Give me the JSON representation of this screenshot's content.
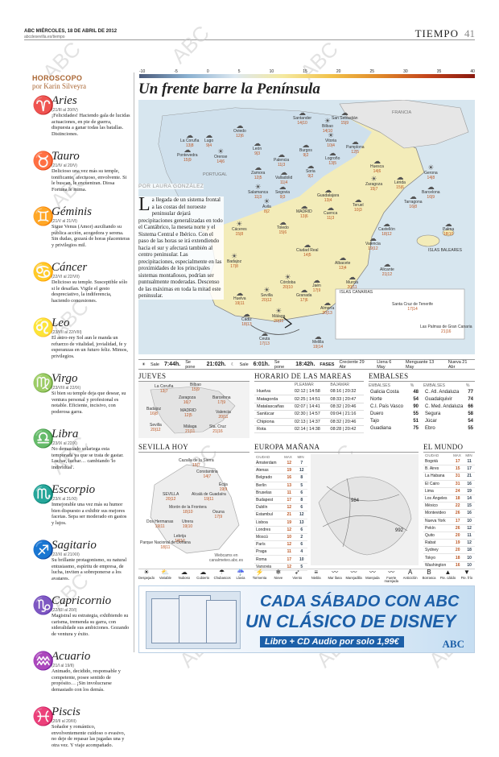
{
  "header": {
    "paper": "ABC",
    "date": "MIÉRCOLES, 18 DE ABRIL DE 2012",
    "url": "abcdesevilla.es/tiempo",
    "section": "TIEMPO",
    "page": "41"
  },
  "watermark": "ABC",
  "horoscope": {
    "title": "HOROSCOPO",
    "author": "por Karin Silveyra",
    "signs": [
      {
        "glyph": "♈",
        "name": "Aries",
        "dates": "(21/III al 20/IV)",
        "text": "¡Felicidades! Haciendo gala de lucidas actuaciones, en pie de guerra, dispuesta a ganar todas las batallas. Distinciones."
      },
      {
        "glyph": "♉",
        "name": "Tauro",
        "dates": "(21/IV al 20/V)",
        "text": "Delicioso una vez más su temple, tonificante, afectuoso, envolvente. Si le buscan, le encuentran. Diosa Fortuna le mima."
      },
      {
        "glyph": "♊",
        "name": "Géminis",
        "dates": "(21/V al 21/VI)",
        "text": "Sigue Venus (Amor) auxiliando su pública acción, acogedora y serena. Sin dudas, gozará de horas placenteras y privilegios mil."
      },
      {
        "glyph": "♋",
        "name": "Cáncer",
        "dates": "(22/VI al 22/VII)",
        "text": "Delicioso su temple. Susceptible sólo si le desafían. Vigile el gesto despreciativo, la indiferencia, haciendo concesiones."
      },
      {
        "glyph": "♌",
        "name": "Leo",
        "dates": "(23/VII al 22/VIII)",
        "text": "El astro-rey Sol aun le manda un refuerzo de vitalidad, jovialidad, fe y esperanzas en un futuro feliz. Mimos, privilegios."
      },
      {
        "glyph": "♍",
        "name": "Virgo",
        "dates": "(23/VIII al 22/IX)",
        "text": "Si bien su temple deja que desear, su ventura personal y profesional es notable. Eficiente, incisivo, con poderosa garra."
      },
      {
        "glyph": "♎",
        "name": "Libra",
        "dates": "(23/IX al 22/X)",
        "text": "No demasiado solariega esta temporada ya que se trata de gastar. Luchar, luchar… cambiando 'lo individual'."
      },
      {
        "glyph": "♏",
        "name": "Escorpio",
        "dates": "(23/X al 21/XI)",
        "text": "Inmejorable una vez más su humor bien dispuesto a exhibir sus mejores facetas. Sepa ser moderado en gastos y lujos."
      },
      {
        "glyph": "♐",
        "name": "Sagitario",
        "dates": "(22/XI al 21/XII)",
        "text": "Su brillante protagonismo, su natural entusiasmo, espíritu de empresa, de lucha, inviten a sobreponerse a los avatares."
      },
      {
        "glyph": "♑",
        "name": "Capricornio",
        "dates": "(22/XII al 20/I)",
        "text": "Magistral su estrategia, exhibiendo su carisma, tremenda su garra, con sideralidade sus ambiciones. Gozando de ventura y éxito."
      },
      {
        "glyph": "♒",
        "name": "Acuario",
        "dates": "(21/I al 19/II)",
        "text": "Animado, decidido, responsable y competente, posee sentido de propósito… ¡Sin involucrarse demasiado con los demás."
      },
      {
        "glyph": "♓",
        "name": "Piscis",
        "dates": "(20/II al 20/III)",
        "text": "Soñador y romántico, envolventemente cuidoso o evasivo, no deje de repasar las jugadas una y otra vez. Y viaje acompañado."
      }
    ]
  },
  "scale": {
    "ticks": [
      "-10",
      "-5",
      "0",
      "5",
      "10",
      "15",
      "20",
      "25",
      "30",
      "35",
      "40"
    ]
  },
  "headline": "Un frente barre la Península",
  "byline": "POR LAURA GONZÁLEZ",
  "article": {
    "initial": "L",
    "text": "a llegada de un sistema frontal a las costas del noroeste peninsular dejará precipitaciones generalizadas en todo el Cantábrico, la meseta norte y el Sistema Central e Ibérico. Con el paso de las horas se irá extendiendo hacia el sur y afectará también al centro peninsular. Las precipitaciones, especialmente en las proximidades de los principales sistemas montañosos, podrían ser puntualmente moderadas. Descenso de las máximas en toda la mitad este peninsular."
  },
  "map": {
    "labels": {
      "francia": "FRANCIA",
      "portugal": "PORTUGAL",
      "baleares": "ISLAS BALEARES",
      "canarias": "ISLAS CANARIAS",
      "tenerife": "Santa Cruz de Tenerife",
      "palmas": "Las Palmas de Gran Canaria",
      "tenerife_t": "17|14",
      "palmas_t": "21|16"
    },
    "cities": [
      {
        "n": "La Coruña",
        "t": "13|8"
      },
      {
        "n": "Oviedo",
        "t": "12|6"
      },
      {
        "n": "Santander",
        "t": "14|10"
      },
      {
        "n": "Bilbao",
        "t": "14|10"
      },
      {
        "n": "San Sebastián",
        "t": "15|9"
      },
      {
        "n": "Lugo",
        "t": "9|4"
      },
      {
        "n": "Pontevedra",
        "t": "15|9"
      },
      {
        "n": "Orense",
        "t": "14|6"
      },
      {
        "n": "León",
        "t": "9|3"
      },
      {
        "n": "Palencia",
        "t": "11|3"
      },
      {
        "n": "Burgos",
        "t": "9|2"
      },
      {
        "n": "Vitoria",
        "t": "10|4"
      },
      {
        "n": "Pamplona",
        "t": "12|5"
      },
      {
        "n": "Logroño",
        "t": "13|5"
      },
      {
        "n": "Huesca",
        "t": "14|6"
      },
      {
        "n": "Gerona",
        "t": "14|8"
      },
      {
        "n": "Zamora",
        "t": "12|5"
      },
      {
        "n": "Valladolid",
        "t": "11|4"
      },
      {
        "n": "Soria",
        "t": "9|2"
      },
      {
        "n": "Zaragoza",
        "t": "15|7"
      },
      {
        "n": "Lérida",
        "t": "15|6"
      },
      {
        "n": "Barcelona",
        "t": "16|9"
      },
      {
        "n": "Tarragona",
        "t": "16|8"
      },
      {
        "n": "Salamanca",
        "t": "11|3"
      },
      {
        "n": "Segovia",
        "t": "9|3"
      },
      {
        "n": "Guadalajara",
        "t": "13|4"
      },
      {
        "n": "Teruel",
        "t": "10|3"
      },
      {
        "n": "Ávila",
        "t": "8|2"
      },
      {
        "n": "MADRID",
        "t": "13|6"
      },
      {
        "n": "Cuenca",
        "t": "11|3"
      },
      {
        "n": "Castellón",
        "t": "18|12"
      },
      {
        "n": "Cáceres",
        "t": "15|8"
      },
      {
        "n": "Toledo",
        "t": "15|6"
      },
      {
        "n": "Valencia",
        "t": "19|12"
      },
      {
        "n": "Palma",
        "t": "18|10"
      },
      {
        "n": "Badajoz",
        "t": "17|8"
      },
      {
        "n": "Ciudad Real",
        "t": "14|5"
      },
      {
        "n": "Albacete",
        "t": "13|4"
      },
      {
        "n": "Alicante",
        "t": "21|12"
      },
      {
        "n": "Córdoba",
        "t": "20|10"
      },
      {
        "n": "Jaén",
        "t": "17|9"
      },
      {
        "n": "Murcia",
        "t": "20|11"
      },
      {
        "n": "Huelva",
        "t": "19|11"
      },
      {
        "n": "Sevilla",
        "t": "20|12"
      },
      {
        "n": "Granada",
        "t": "17|6"
      },
      {
        "n": "Almería",
        "t": "20|13"
      },
      {
        "n": "Cádiz",
        "t": "18|13"
      },
      {
        "n": "Málaga",
        "t": "20|11"
      },
      {
        "n": "Ceuta",
        "t": "17|13"
      },
      {
        "n": "Melilla",
        "t": "19|14"
      }
    ]
  },
  "sunbar": {
    "sale_l": "Sale",
    "sale": "7:44h.",
    "pone_l": "Se pone",
    "pone": "21:02h.",
    "sale2_l": "Sale",
    "sale2": "6:01h.",
    "pone2_l": "Se pone",
    "pone2": "18:42h.",
    "fases_l": "FASES",
    "fases": [
      "Creciente 29 Abr",
      "Llena 6 May",
      "Menguante 13 May",
      "Nueva 21 Abr"
    ]
  },
  "jueves": {
    "title": "JUEVES",
    "cities": [
      {
        "n": "La Coruña",
        "t": "13|7"
      },
      {
        "n": "Bilbao",
        "t": "15|9"
      },
      {
        "n": "Zaragoza",
        "t": "16|7"
      },
      {
        "n": "Barcelona",
        "t": "17|9"
      },
      {
        "n": "Badajoz",
        "t": "16|8"
      },
      {
        "n": "MADRID",
        "t": "12|5"
      },
      {
        "n": "Valencia",
        "t": "20|11"
      },
      {
        "n": "Sevilla",
        "t": "20|12"
      },
      {
        "n": "Málaga",
        "t": "21|11"
      },
      {
        "n": "Sta. Cruz",
        "t": "21|16"
      }
    ]
  },
  "mareas": {
    "title": "HORARIO DE LAS MAREAS",
    "h1": "PLEAMAR",
    "h2": "BAJAMAR",
    "rows": [
      {
        "c": "Huelva",
        "p": "02:12 | 14:58",
        "b": "08:16 | 20:32"
      },
      {
        "c": "Matagorda",
        "p": "02:25 | 14:51",
        "b": "08:33 | 20:47"
      },
      {
        "c": "Matalascañas",
        "p": "02:07 | 14:41",
        "b": "08:32 | 20:46"
      },
      {
        "c": "Sanlúcar",
        "p": "02:30 | 14:57",
        "b": "09:04 | 21:16"
      },
      {
        "c": "Chipiona",
        "p": "02:13 | 14:37",
        "b": "08:32 | 20:46"
      },
      {
        "c": "Rota",
        "p": "02:14 | 14:38",
        "b": "08:28 | 20:42"
      }
    ]
  },
  "embalses": {
    "title": "EMBALSES",
    "h1": "EMBALSES",
    "h2": "%",
    "left": [
      {
        "n": "Galicia Costa",
        "v": "48"
      },
      {
        "n": "Norte",
        "v": "54"
      },
      {
        "n": "C.I. País Vasco",
        "v": "90"
      },
      {
        "n": "Duero",
        "v": "55"
      },
      {
        "n": "Tajo",
        "v": "51"
      },
      {
        "n": "Guadiana",
        "v": "75"
      }
    ],
    "right": [
      {
        "n": "C. Atl. Andaluza",
        "v": "77"
      },
      {
        "n": "Guadalquivir",
        "v": "74"
      },
      {
        "n": "C. Med. Andaluza",
        "v": "66"
      },
      {
        "n": "Segura",
        "v": "58"
      },
      {
        "n": "Júcar",
        "v": "54"
      },
      {
        "n": "Ebro",
        "v": "55"
      }
    ]
  },
  "sevilla": {
    "title": "SEVILLA HOY",
    "web": "Webcams en canalmeteo.abc.es",
    "towns": [
      {
        "n": "Cazalla de la Sierra",
        "t": "15|7"
      },
      {
        "n": "Constantina",
        "t": "14|7"
      },
      {
        "n": "Écija",
        "t": "19|9"
      },
      {
        "n": "SEVILLA",
        "t": "20|12"
      },
      {
        "n": "Alcalá de Guadaíra",
        "t": "19|11"
      },
      {
        "n": "Morón de la Frontera",
        "t": "18|10"
      },
      {
        "n": "Osuna",
        "t": "17|9"
      },
      {
        "n": "Dos Hermanas",
        "t": "19|11"
      },
      {
        "n": "Utrera",
        "t": "19|10"
      },
      {
        "n": "Lebrija",
        "t": "18|10"
      },
      {
        "n": "Parque Nacional de Doñana",
        "t": "18|11"
      }
    ]
  },
  "europa": {
    "title": "EUROPA MAÑANA",
    "h": [
      "CIUDAD",
      "MAX",
      "MIN"
    ],
    "rows": [
      [
        "Ámsterdam",
        "12",
        "7"
      ],
      [
        "Atenas",
        "19",
        "12"
      ],
      [
        "Belgrado",
        "16",
        "8"
      ],
      [
        "Berlín",
        "13",
        "5"
      ],
      [
        "Bruselas",
        "11",
        "6"
      ],
      [
        "Budapest",
        "17",
        "8"
      ],
      [
        "Dublín",
        "12",
        "6"
      ],
      [
        "Estambul",
        "21",
        "12"
      ],
      [
        "Lisboa",
        "19",
        "13"
      ],
      [
        "Londres",
        "12",
        "6"
      ],
      [
        "Moscú",
        "10",
        "2"
      ],
      [
        "París",
        "12",
        "6"
      ],
      [
        "Praga",
        "11",
        "4"
      ],
      [
        "Roma",
        "17",
        "10"
      ],
      [
        "Varsovia",
        "12",
        "5"
      ]
    ],
    "isobars": [
      "984",
      "992"
    ]
  },
  "mundo": {
    "title": "EL MUNDO",
    "h": [
      "CIUDAD",
      "MAX",
      "MIN"
    ],
    "rows": [
      [
        "Bogotá",
        "17",
        "11"
      ],
      [
        "B. Aires",
        "15",
        "17"
      ],
      [
        "La Habana",
        "31",
        "21"
      ],
      [
        "El Cairo",
        "31",
        "16"
      ],
      [
        "Lima",
        "24",
        "19"
      ],
      [
        "Los Ángeles",
        "18",
        "14"
      ],
      [
        "México",
        "22",
        "15"
      ],
      [
        "Montevideo",
        "26",
        "16"
      ],
      [
        "Nueva York",
        "17",
        "10"
      ],
      [
        "Pekín",
        "26",
        "12"
      ],
      [
        "Quito",
        "20",
        "11"
      ],
      [
        "Rabat",
        "19",
        "12"
      ],
      [
        "Sydney",
        "20",
        "18"
      ],
      [
        "Tokyo",
        "18",
        "10"
      ],
      [
        "Washington",
        "16",
        "10"
      ]
    ]
  },
  "legend": [
    "Despejado",
    "Variable",
    "Nuboso",
    "Cubierto",
    "Chubascos",
    "Lluvia",
    "Tormenta",
    "Nieve",
    "Viento",
    "Niebla",
    "Mar llana",
    "Marejadilla",
    "Marejada",
    "Fuerte marejada",
    "Anticiclón",
    "Borrasca",
    "Fte. cálido",
    "Fte. frío"
  ],
  "ad": {
    "line1": "CADA SÁBADO CON ABC",
    "line2": "UN CLÁSICO DE DISNEY",
    "line3": "Libro + CD Audio por solo 1,99€",
    "logo": "ABC"
  }
}
